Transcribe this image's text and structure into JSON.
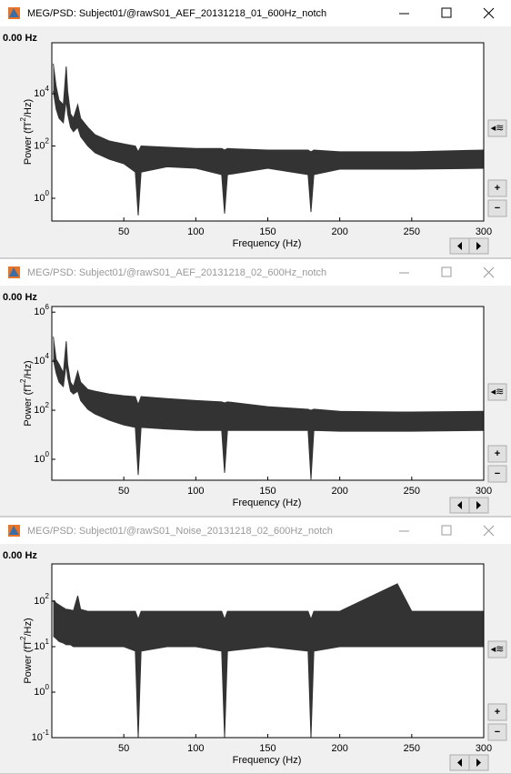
{
  "windows": [
    {
      "title": "MEG/PSD: Subject01/@rawS01_AEF_20131218_01_600Hz_notch",
      "active": true,
      "freq_label": "0.00 Hz",
      "buttons": [
        "+",
        "−"
      ],
      "chart": {
        "type": "band",
        "log_y": true,
        "x_label": "Frequency (Hz)",
        "y_label_parts": [
          "Power  (fT",
          "2",
          "/Hz)"
        ],
        "xlim": [
          0,
          300
        ],
        "xticks": [
          50,
          100,
          150,
          200,
          250,
          300
        ],
        "ylim": [
          0.135,
          890000
        ],
        "yticks": [
          {
            "value": 1,
            "label": "10",
            "exponent": "0"
          },
          {
            "value": 100,
            "label": "10",
            "exponent": "2"
          },
          {
            "value": 10000,
            "label": "10",
            "exponent": "4"
          }
        ],
        "x": [
          1,
          3,
          5,
          8,
          10,
          11,
          13,
          15,
          18,
          20,
          25,
          30,
          40,
          50,
          58,
          60,
          62,
          80,
          100,
          118,
          120,
          122,
          150,
          178,
          180,
          182,
          200,
          240,
          250,
          300
        ],
        "series": [
          {
            "color": "#333333",
            "values": [
              140000,
              19000,
              5700,
              3800,
              110000,
              12700,
              1700,
              1150,
              3800,
              1150,
              520,
              270,
              155,
              120,
              100,
              60,
              100,
              90,
              80,
              80,
              70,
              80,
              70,
              70,
              60,
              70,
              60,
              60,
              60,
              70
            ]
          },
          {
            "color": "#333333",
            "values": [
              12700,
              2600,
              1150,
              770,
              5700,
              1700,
              520,
              350,
              520,
              230,
              100,
              55,
              31,
              21,
              10,
              0.22,
              10,
              16,
              14,
              8,
              0.26,
              8,
              14,
              8,
              0.3,
              8,
              13,
              13,
              13,
              14
            ]
          }
        ]
      }
    },
    {
      "title": "MEG/PSD: Subject01/@rawS01_AEF_20131218_02_600Hz_notch",
      "active": false,
      "freq_label": "0.00 Hz",
      "buttons": [
        "+",
        "−"
      ],
      "chart": {
        "type": "band",
        "log_y": true,
        "x_label": "Frequency (Hz)",
        "y_label_parts": [
          "Power  (fT",
          "2",
          "/Hz)"
        ],
        "xlim": [
          0,
          300
        ],
        "xticks": [
          50,
          100,
          150,
          200,
          250,
          300
        ],
        "ylim": [
          0.14,
          1700000
        ],
        "yticks": [
          {
            "value": 1,
            "label": "10",
            "exponent": "0"
          },
          {
            "value": 100,
            "label": "10",
            "exponent": "2"
          },
          {
            "value": 10000,
            "label": "10",
            "exponent": "4"
          },
          {
            "value": 1000000,
            "label": "10",
            "exponent": "6"
          }
        ],
        "x": [
          1,
          3,
          5,
          8,
          10,
          11,
          13,
          15,
          18,
          20,
          25,
          30,
          40,
          50,
          58,
          60,
          62,
          80,
          100,
          118,
          120,
          122,
          150,
          178,
          180,
          182,
          200,
          240,
          250,
          300
        ],
        "series": [
          {
            "color": "#333333",
            "values": [
              100000,
              12000,
              7700,
              3300,
              65000,
              7700,
              1400,
              920,
              3900,
              1400,
              700,
              600,
              460,
              390,
              360,
              170,
              360,
              300,
              250,
              220,
              200,
              220,
              140,
              110,
              100,
              110,
              90,
              85,
              85,
              90
            ]
          },
          {
            "color": "#333333",
            "values": [
              12000,
              3300,
              1400,
              920,
              7700,
              2200,
              600,
              460,
              600,
              250,
              110,
              70,
              39,
              25,
              20,
              0.23,
              20,
              17,
              15,
              15,
              0.28,
              15,
              15,
              15,
              0.15,
              15,
              14,
              14,
              14,
              15
            ]
          }
        ]
      }
    },
    {
      "title": "MEG/PSD: Subject01/@rawS01_Noise_20131218_02_600Hz_notch",
      "active": false,
      "freq_label": "0.00 Hz",
      "buttons": [
        "+",
        "−"
      ],
      "chart": {
        "type": "band",
        "log_y": true,
        "x_label": "Frequency (Hz)",
        "y_label_parts": [
          "Power  (fT",
          "2",
          "/Hz)"
        ],
        "xlim": [
          0,
          300
        ],
        "xticks": [
          50,
          100,
          150,
          200,
          250,
          300
        ],
        "ylim": [
          0.1,
          660
        ],
        "yticks": [
          {
            "value": 0.1,
            "label": "10",
            "exponent": "-1"
          },
          {
            "value": 1,
            "label": "10",
            "exponent": "0"
          },
          {
            "value": 10,
            "label": "10",
            "exponent": "1"
          },
          {
            "value": 100,
            "label": "10",
            "exponent": "2"
          }
        ],
        "x": [
          1,
          3,
          5,
          8,
          10,
          11,
          13,
          15,
          18,
          20,
          25,
          30,
          40,
          50,
          58,
          60,
          62,
          80,
          100,
          118,
          120,
          122,
          150,
          178,
          180,
          182,
          200,
          240,
          250,
          300
        ],
        "series": [
          {
            "color": "#333333",
            "values": [
              105,
              91,
              83,
              72,
              66,
              66,
              64,
              62,
              132,
              66,
              60,
              60,
              60,
              60,
              60,
              40,
              60,
              60,
              60,
              60,
              40,
              60,
              60,
              60,
              40,
              60,
              60,
              240,
              60,
              60
            ]
          },
          {
            "color": "#333333",
            "values": [
              17,
              15,
              13,
              12,
              11,
              11,
              11,
              10,
              10,
              10,
              10,
              10,
              10,
              10,
              8,
              0.1,
              8,
              10,
              10,
              8,
              0.1,
              8,
              10,
              8,
              0.1,
              8,
              10,
              10,
              10,
              10
            ]
          }
        ]
      }
    }
  ]
}
